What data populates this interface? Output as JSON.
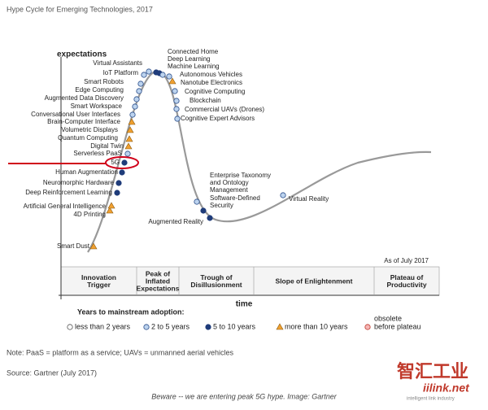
{
  "title": "Hype Cycle for Emerging Technologies, 2017",
  "y_axis_label": "expectations",
  "x_axis_label": "time",
  "as_of": "As of July 2017",
  "nodes": [
    {
      "label": [
        "Smart Dust"
      ]
    },
    {
      "label": [
        "4D Printing"
      ]
    },
    {
      "label": [
        "Artificial General Intelligence"
      ]
    },
    {
      "label": [
        "Deep Reinforcement Learning"
      ]
    },
    {
      "label": [
        "Neuromorphic Hardware"
      ]
    },
    {
      "label": [
        "Human Augmentation"
      ]
    },
    {
      "label": [
        "5G"
      ]
    },
    {
      "label": [
        "Serverless PaaS"
      ]
    },
    {
      "label": [
        "Digital Twin"
      ]
    },
    {
      "label": [
        "Quantum Computing"
      ]
    },
    {
      "label": [
        "Volumetric Displays"
      ]
    },
    {
      "label": [
        "Brain-Computer Interface"
      ]
    },
    {
      "label": [
        "Conversational User Interfaces"
      ]
    },
    {
      "label": [
        "Smart Workspace"
      ]
    },
    {
      "label": [
        "Augmented Data Discovery"
      ]
    },
    {
      "label": [
        "Edge Computing"
      ]
    },
    {
      "label": [
        "Smart Robots"
      ]
    },
    {
      "label": [
        "IoT Platform"
      ]
    },
    {
      "label": [
        "Virtual Assistants"
      ]
    },
    {
      "label": [
        "Connected Home"
      ]
    },
    {
      "label": [
        "Deep Learning"
      ]
    },
    {
      "label": [
        "Machine Learning"
      ]
    },
    {
      "label": [
        "Autonomous Vehicles"
      ]
    },
    {
      "label": [
        "Nanotube Electronics"
      ]
    },
    {
      "label": [
        "Cognitive Computing"
      ]
    },
    {
      "label": [
        "Blockchain"
      ]
    },
    {
      "label": [
        "Commercial UAVs (Drones)"
      ]
    },
    {
      "label": [
        "Cognitive Expert Advisors"
      ]
    },
    {
      "label": [
        "Enterprise Taxonomy",
        "and Ontology",
        "Management"
      ]
    },
    {
      "label": [
        "Software-Defined",
        "Security"
      ]
    },
    {
      "label": [
        "Augmented Reality"
      ]
    },
    {
      "label": [
        "Virtual Reality"
      ]
    }
  ],
  "phases": [
    [
      "Innovation",
      "Trigger"
    ],
    [
      "Peak of",
      "Inflated",
      "Expectations"
    ],
    [
      "Trough of",
      "Disillusionment"
    ],
    [
      "Slope of Enlightenment"
    ],
    [
      "Plateau of",
      "Productivity"
    ]
  ],
  "legend": {
    "title": "Years to mainstream adoption:",
    "items": [
      [
        "less than 2 years"
      ],
      [
        "2 to 5 years"
      ],
      [
        "5 to 10 years"
      ],
      [
        "more than 10 years"
      ],
      [
        "obsolete",
        "before plateau"
      ]
    ]
  },
  "note": "Note: PaaS = platform as a service; UAVs = unmanned aerial vehicles",
  "source": "Source: Gartner (July 2017)",
  "caption": "Beware -- we are entering peak 5G hype. Image: Gartner",
  "watermark": {
    "title": "智汇工业",
    "site": "iilink.net",
    "tagline": "intelligent link industry"
  }
}
